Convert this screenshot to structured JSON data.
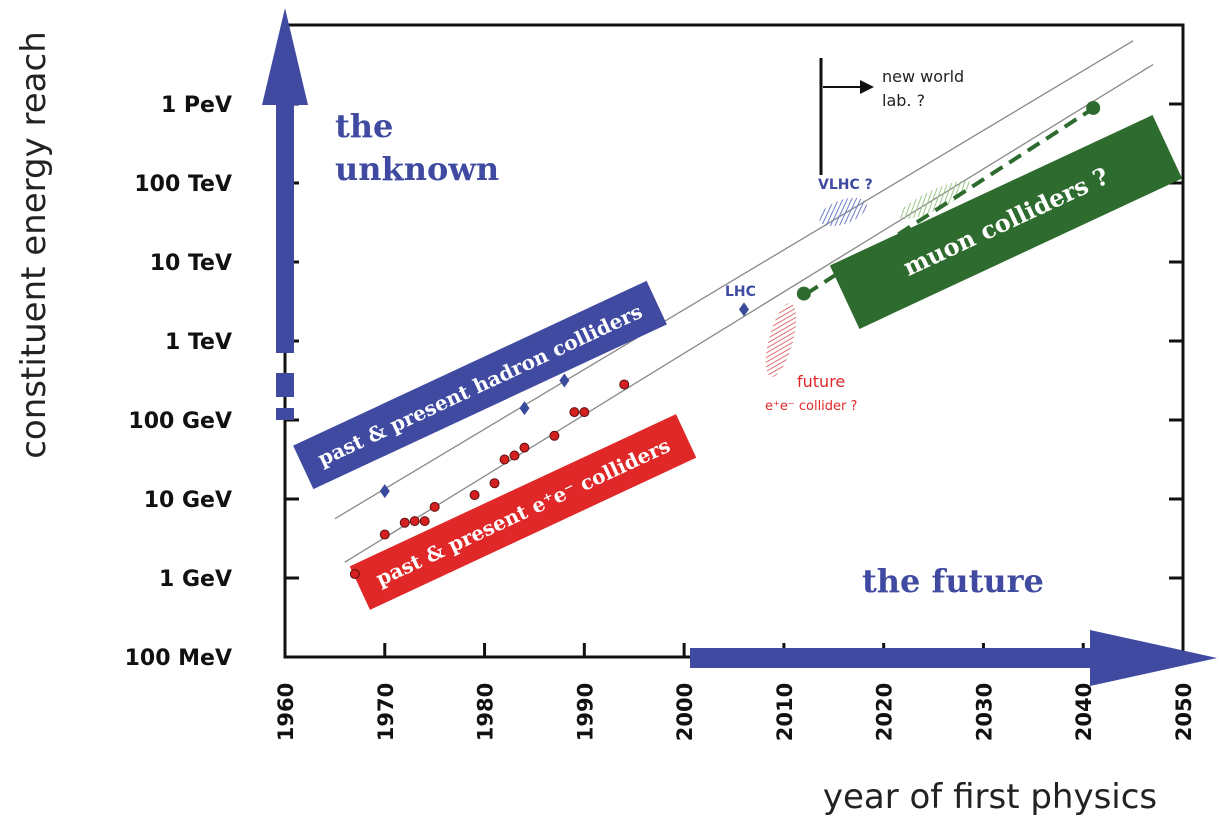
{
  "chart_data": {
    "type": "scatter",
    "xlabel": "year of first physics",
    "ylabel": "constituent energy reach",
    "xlim": [
      1960,
      2050
    ],
    "ylim_labels": [
      "100 MeV",
      "1 GeV",
      "10 GeV",
      "100 GeV",
      "1 TeV",
      "10 TeV",
      "100 TeV",
      "1 PeV"
    ],
    "x_ticks": [
      "1960",
      "1970",
      "1980",
      "1990",
      "2000",
      "2010",
      "2020",
      "2030",
      "2040",
      "2050"
    ],
    "y_ticks": [
      {
        "label": "100 MeV",
        "log10_GeV": -1
      },
      {
        "label": "1 GeV",
        "log10_GeV": 0
      },
      {
        "label": "10 GeV",
        "log10_GeV": 1
      },
      {
        "label": "100 GeV",
        "log10_GeV": 2
      },
      {
        "label": "1 TeV",
        "log10_GeV": 3
      },
      {
        "label": "10 TeV",
        "log10_GeV": 4
      },
      {
        "label": "100 TeV",
        "log10_GeV": 5
      },
      {
        "label": "1 PeV",
        "log10_GeV": 6
      }
    ],
    "series": [
      {
        "name": "past & present hadron colliders",
        "color": "#3a4a9c",
        "points": [
          [
            1970,
            1.1
          ],
          [
            1984,
            2.15
          ],
          [
            1988,
            2.5
          ],
          [
            2006,
            3.4
          ]
        ]
      },
      {
        "name": "past & present e+e- colliders",
        "color": "#d42020",
        "points": [
          [
            1967,
            0.05
          ],
          [
            1970,
            0.55
          ],
          [
            1972,
            0.7
          ],
          [
            1973,
            0.72
          ],
          [
            1974,
            0.72
          ],
          [
            1975,
            0.9
          ],
          [
            1979,
            1.05
          ],
          [
            1981,
            1.2
          ],
          [
            1982,
            1.5
          ],
          [
            1983,
            1.55
          ],
          [
            1984,
            1.65
          ],
          [
            1987,
            1.8
          ],
          [
            1989,
            2.1
          ],
          [
            1990,
            2.1
          ],
          [
            1994,
            2.45
          ]
        ]
      },
      {
        "name": "muon colliders ?",
        "color": "#2e6b2e",
        "points": [
          [
            2012,
            3.6
          ],
          [
            2041,
            5.95
          ]
        ]
      }
    ],
    "trend_lines": [
      {
        "points": [
          [
            1965,
            0.75
          ],
          [
            2045,
            6.8
          ]
        ]
      },
      {
        "points": [
          [
            1966,
            0.2
          ],
          [
            2047,
            6.5
          ]
        ]
      }
    ]
  },
  "annotations": {
    "unknown": [
      "the",
      "unknown"
    ],
    "future": "the future",
    "hadron_banner": "past & present hadron colliders",
    "ee_banner": "past & present e⁺e⁻ colliders",
    "muon_banner": "muon colliders ?",
    "lhc": "LHC",
    "vlhc": "VLHC ?",
    "new_world": [
      "new world",
      "lab. ?"
    ],
    "future_ee": [
      "future",
      "e⁺e⁻ collider ?"
    ]
  },
  "colors": {
    "blue": "#3f4aa0",
    "red": "#e02828",
    "green": "#2e6b2e",
    "hatch_blue": "#6f7fc8",
    "hatch_green": "#9ac88a",
    "hatch_red": "#e07070"
  }
}
